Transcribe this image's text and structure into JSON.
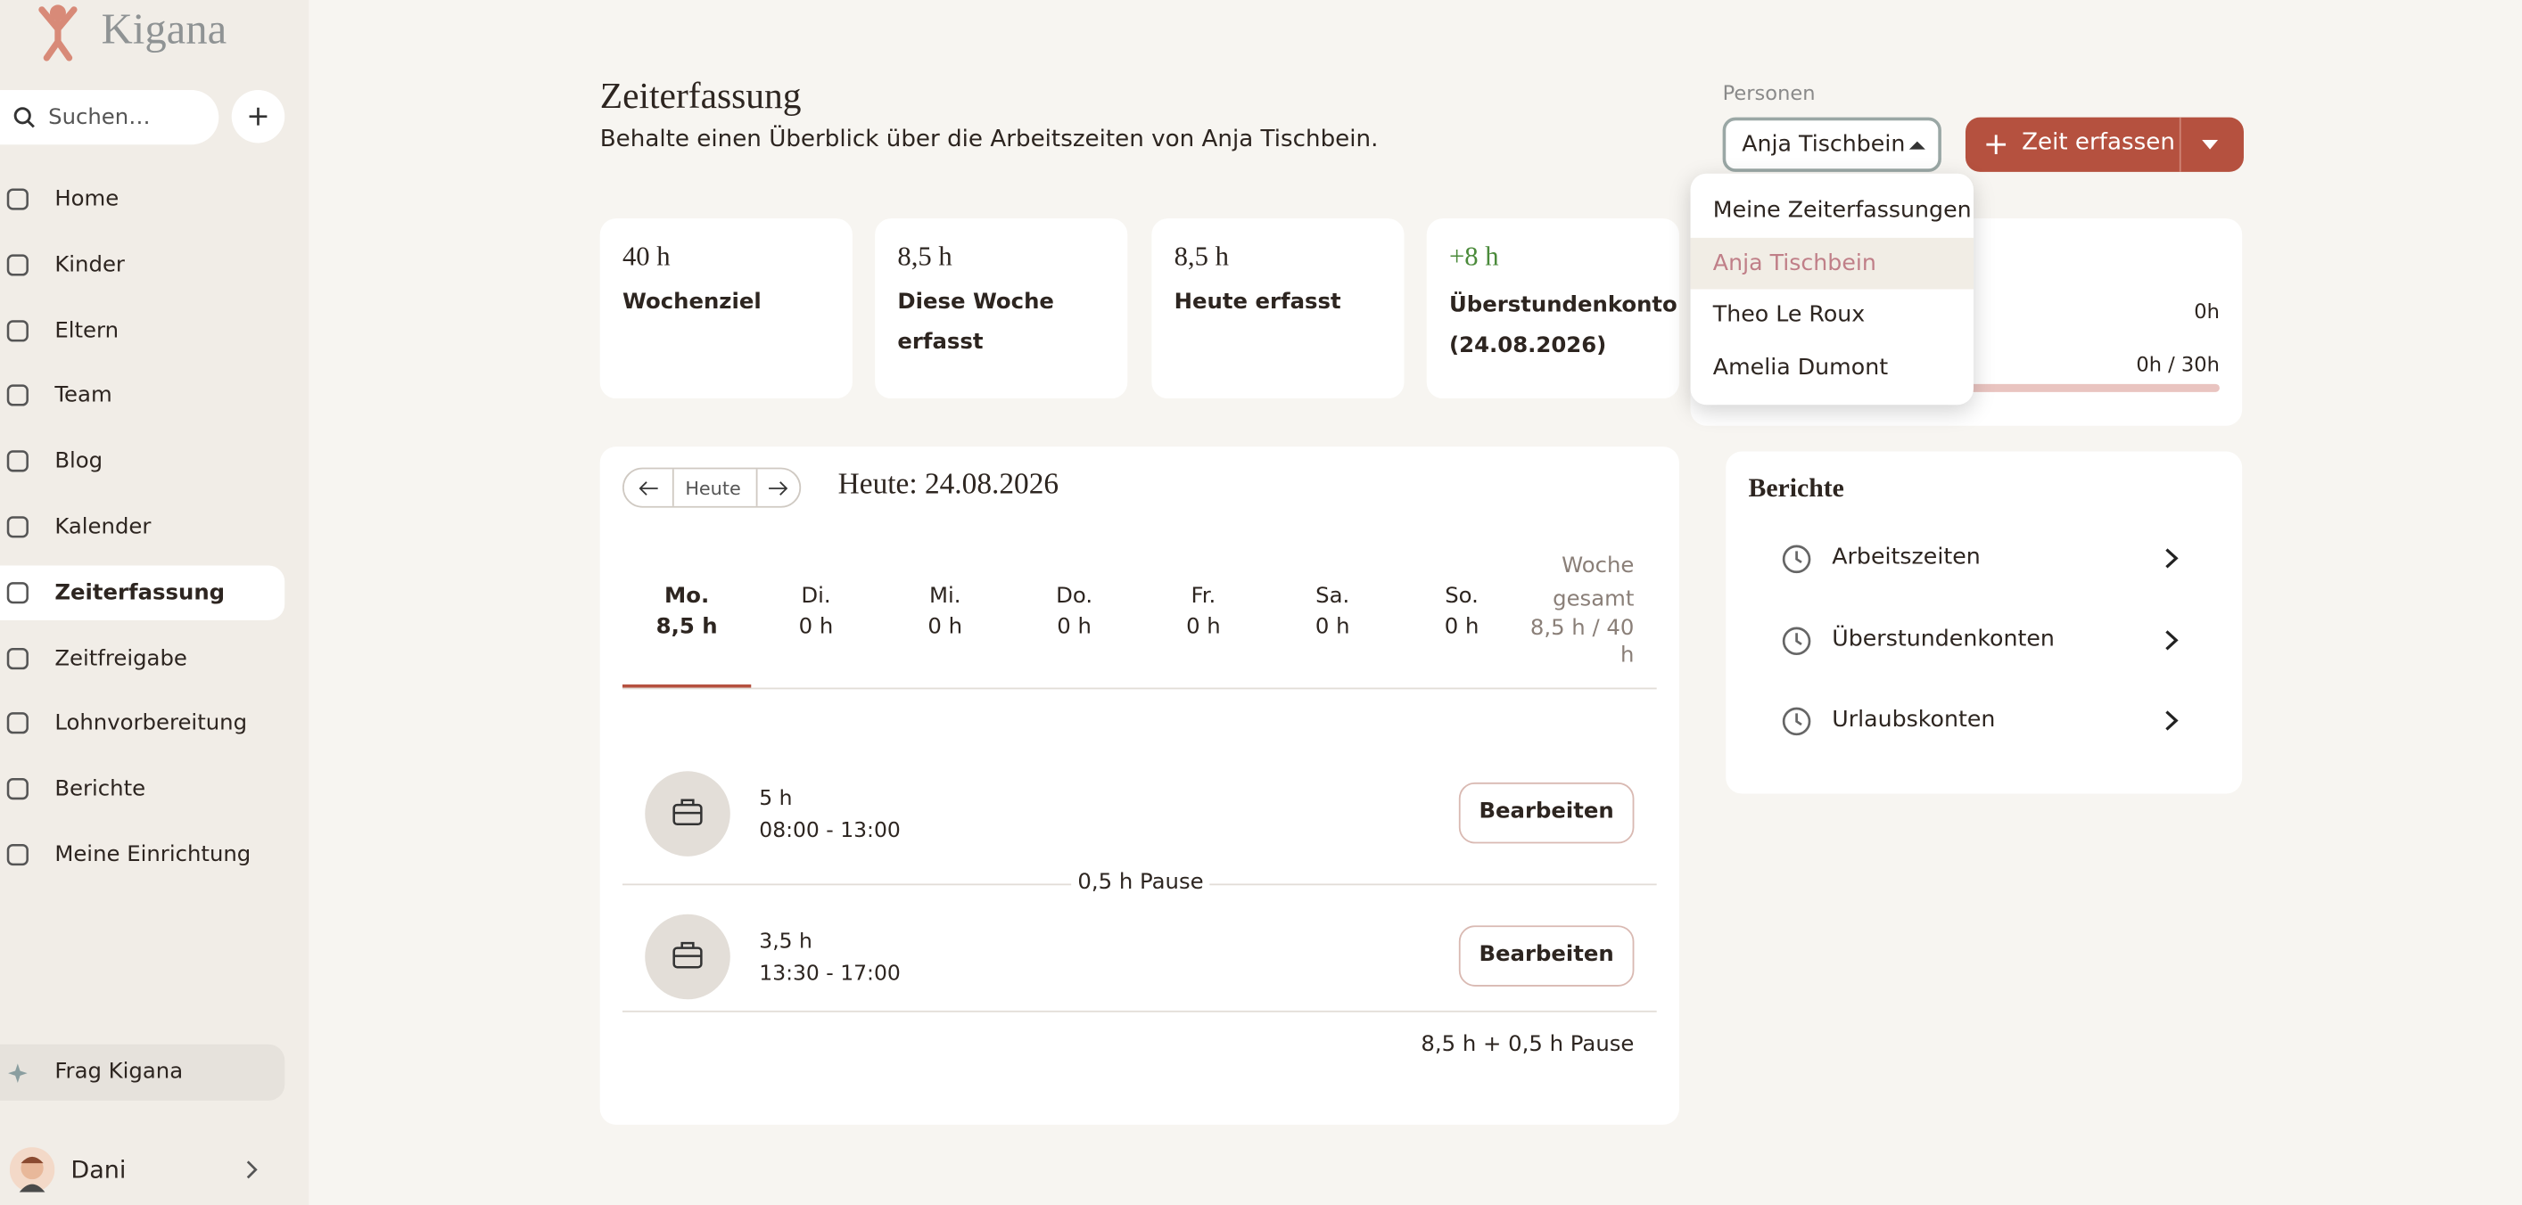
{
  "sidebar": {
    "brand": "Kigana",
    "search": "Suchen…",
    "nav": [
      "Home",
      "Kinder",
      "Eltern",
      "Team",
      "Blog",
      "Kalender",
      "Zeiterfassung",
      "Zeitfreigabe",
      "Lohnvorbereitung",
      "Berichte",
      "Meine Einrichtung"
    ],
    "assistant": "Frag Kigana",
    "user": "Dani"
  },
  "header": {
    "title": "Zeiterfassung",
    "subtitle": "Behalte einen Überblick über die Arbeitszeiten von Anja Tischbein."
  },
  "persons": {
    "label": "Personen",
    "selected": "Anja Tischbein",
    "options": [
      "Meine Zeiterfassungen",
      "Anja Tischbein",
      "Theo Le Roux",
      "Amelia Dumont"
    ]
  },
  "action_button": "Zeit erfassen",
  "stats": [
    {
      "value": "40 h",
      "label": "Wochenziel"
    },
    {
      "value": "8,5 h",
      "label": "Diese Woche erfasst"
    },
    {
      "value": "8,5 h",
      "label": "Heute erfasst"
    },
    {
      "value": "+8 h",
      "label": "Überstundenkonto (24.08.2026)"
    }
  ],
  "hidden_card": {
    "line1": "0h",
    "line2": "0h / 30h"
  },
  "week": {
    "today_button": "Heute",
    "date_title": "Heute: 24.08.2026",
    "days": [
      {
        "name": "Mo.",
        "hours": "8,5 h"
      },
      {
        "name": "Di.",
        "hours": "0 h"
      },
      {
        "name": "Mi.",
        "hours": "0 h"
      },
      {
        "name": "Do.",
        "hours": "0 h"
      },
      {
        "name": "Fr.",
        "hours": "0 h"
      },
      {
        "name": "Sa.",
        "hours": "0 h"
      },
      {
        "name": "So.",
        "hours": "0 h"
      }
    ],
    "total_label": "Woche gesamt",
    "total": "8,5 h / 40 h"
  },
  "entries": [
    {
      "duration": "5 h",
      "range": "08:00 - 13:00",
      "action": "Bearbeiten"
    },
    {
      "duration": "3,5 h",
      "range": "13:30 - 17:00",
      "action": "Bearbeiten"
    }
  ],
  "pause": "0,5 h Pause",
  "summary": "8,5 h + 0,5 h Pause",
  "reports": {
    "title": "Berichte",
    "items": [
      "Arbeitszeiten",
      "Überstundenkonten",
      "Urlaubskonten"
    ]
  }
}
